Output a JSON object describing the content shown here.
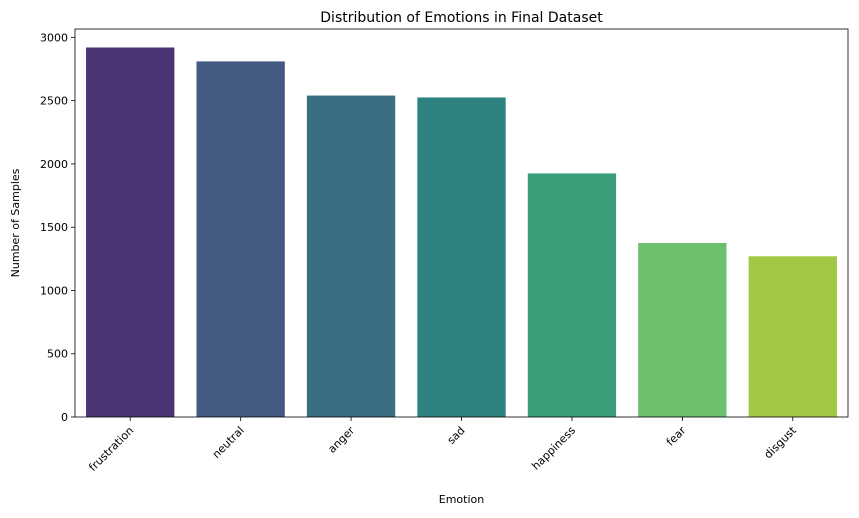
{
  "chart_data": {
    "type": "bar",
    "title": "Distribution of Emotions in Final Dataset",
    "xlabel": "Emotion",
    "ylabel": "Number of Samples",
    "categories": [
      "frustration",
      "neutral",
      "anger",
      "sad",
      "happiness",
      "fear",
      "disgust"
    ],
    "values": [
      2920,
      2810,
      2540,
      2525,
      1925,
      1375,
      1270
    ],
    "colors": [
      "#4b3574",
      "#445a82",
      "#3a6e82",
      "#2e8380",
      "#3ba07a",
      "#6cbf6c",
      "#a2c945"
    ],
    "yticks": [
      0,
      500,
      1000,
      1500,
      2000,
      2500,
      3000
    ],
    "ylim": [
      0,
      3066
    ],
    "grid": false,
    "legend": "none",
    "xtick_rotation_deg": 45
  }
}
